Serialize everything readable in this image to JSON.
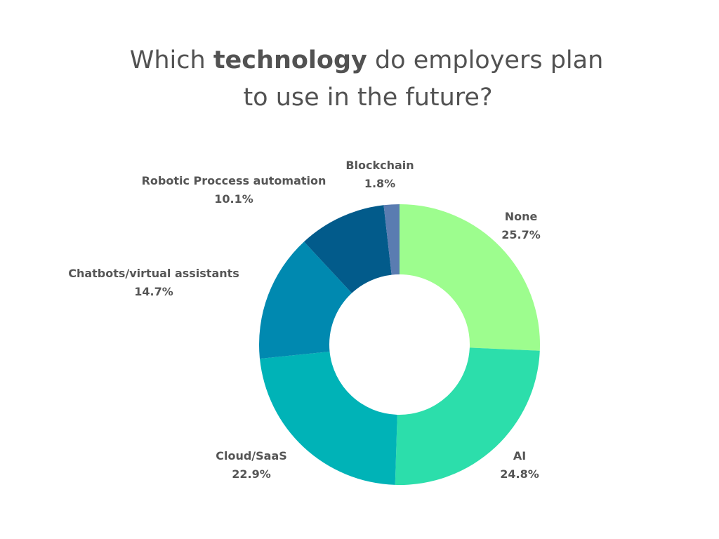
{
  "chart_data": {
    "type": "donut",
    "title": {
      "line1": [
        "Which",
        "technology",
        "do employers plan"
      ],
      "line2": "to use in the future?"
    },
    "categories": [
      "None",
      "AI",
      "Cloud/SaaS",
      "Chatbots/virtual assistants",
      "Robotic Proccess automation",
      "Blockchain"
    ],
    "values": [
      25.7,
      24.8,
      22.9,
      14.7,
      10.1,
      1.8
    ],
    "value_labels": [
      "25.7%",
      "24.8%",
      "22.9%",
      "14.7%",
      "10.1%",
      "1.8%"
    ],
    "colors": [
      "#9dfd8e",
      "#2cdeab",
      "#00b3b7",
      "#0089b0",
      "#025b8b",
      "#5a7cb1"
    ]
  }
}
